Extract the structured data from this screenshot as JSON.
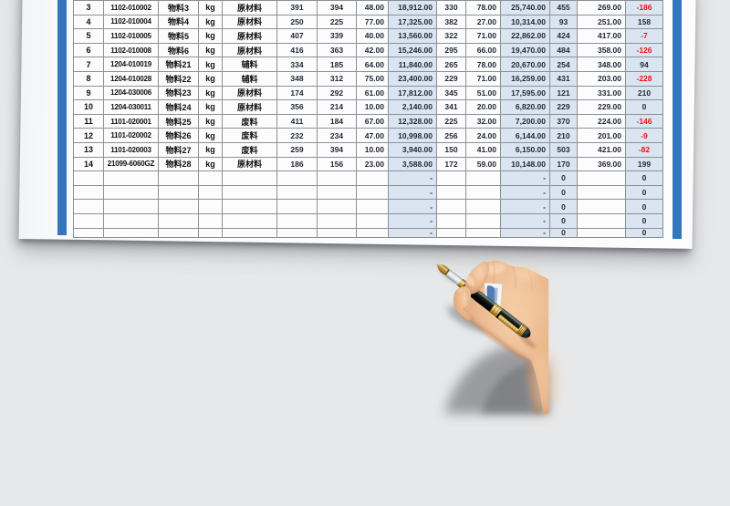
{
  "table": {
    "rows": [
      [
        "3",
        "1102-010002",
        "物料3",
        "kg",
        "原材料",
        "391",
        "394",
        "48.00",
        "18,912.00",
        "330",
        "78.00",
        "25,740.00",
        "455",
        "269.00",
        "-186"
      ],
      [
        "4",
        "1102-010004",
        "物料4",
        "kg",
        "原材料",
        "250",
        "225",
        "77.00",
        "17,325.00",
        "382",
        "27.00",
        "10,314.00",
        "93",
        "251.00",
        "158"
      ],
      [
        "5",
        "1102-010005",
        "物料5",
        "kg",
        "原材料",
        "407",
        "339",
        "40.00",
        "13,560.00",
        "322",
        "71.00",
        "22,862.00",
        "424",
        "417.00",
        "-7"
      ],
      [
        "6",
        "1102-010008",
        "物料6",
        "kg",
        "原材料",
        "416",
        "363",
        "42.00",
        "15,246.00",
        "295",
        "66.00",
        "19,470.00",
        "484",
        "358.00",
        "-126"
      ],
      [
        "7",
        "1204-010019",
        "物料21",
        "kg",
        "辅料",
        "334",
        "185",
        "64.00",
        "11,840.00",
        "265",
        "78.00",
        "20,670.00",
        "254",
        "348.00",
        "94"
      ],
      [
        "8",
        "1204-010028",
        "物料22",
        "kg",
        "辅料",
        "348",
        "312",
        "75.00",
        "23,400.00",
        "229",
        "71.00",
        "16,259.00",
        "431",
        "203.00",
        "-228"
      ],
      [
        "9",
        "1204-030006",
        "物料23",
        "kg",
        "原材料",
        "174",
        "292",
        "61.00",
        "17,812.00",
        "345",
        "51.00",
        "17,595.00",
        "121",
        "331.00",
        "210"
      ],
      [
        "10",
        "1204-030011",
        "物料24",
        "kg",
        "原材料",
        "356",
        "214",
        "10.00",
        "2,140.00",
        "341",
        "20.00",
        "6,820.00",
        "229",
        "229.00",
        "0"
      ],
      [
        "11",
        "1101-020001",
        "物料25",
        "kg",
        "废料",
        "411",
        "184",
        "67.00",
        "12,328.00",
        "225",
        "32.00",
        "7,200.00",
        "370",
        "224.00",
        "-146"
      ],
      [
        "12",
        "1101-020002",
        "物料26",
        "kg",
        "废料",
        "232",
        "234",
        "47.00",
        "10,998.00",
        "256",
        "24.00",
        "6,144.00",
        "210",
        "201.00",
        "-9"
      ],
      [
        "13",
        "1101-020003",
        "物料27",
        "kg",
        "废料",
        "259",
        "394",
        "10.00",
        "3,940.00",
        "150",
        "41.00",
        "6,150.00",
        "503",
        "421.00",
        "-82"
      ],
      [
        "14",
        "21099-6060GZ",
        "物料28",
        "kg",
        "原材料",
        "186",
        "156",
        "23.00",
        "3,588.00",
        "172",
        "59.00",
        "10,148.00",
        "170",
        "369.00",
        "199"
      ]
    ],
    "empty_rows": [
      [
        "",
        "",
        "",
        "",
        "",
        "",
        "",
        "",
        "-",
        "",
        "",
        "-",
        "0",
        "",
        "0"
      ],
      [
        "",
        "",
        "",
        "",
        "",
        "",
        "",
        "",
        "-",
        "",
        "",
        "-",
        "0",
        "",
        "0"
      ],
      [
        "",
        "",
        "",
        "",
        "",
        "",
        "",
        "",
        "-",
        "",
        "",
        "-",
        "0",
        "",
        "0"
      ],
      [
        "",
        "",
        "",
        "",
        "",
        "",
        "",
        "",
        "-",
        "",
        "",
        "-",
        "0",
        "",
        "0"
      ],
      [
        "",
        "",
        "",
        "",
        "",
        "",
        "",
        "",
        "-",
        "",
        "",
        "-",
        "0",
        "",
        "0"
      ]
    ]
  },
  "colors": {
    "background": "#e7e8e9",
    "paper": "#fcfcfd",
    "page_border_blue": "#3376bd",
    "cell_blue": "#dbe5f1",
    "grid_line": "#8c9196",
    "text_dark": "#101010",
    "number_dark": "#1d2633",
    "negative_red": "#ee1111"
  }
}
